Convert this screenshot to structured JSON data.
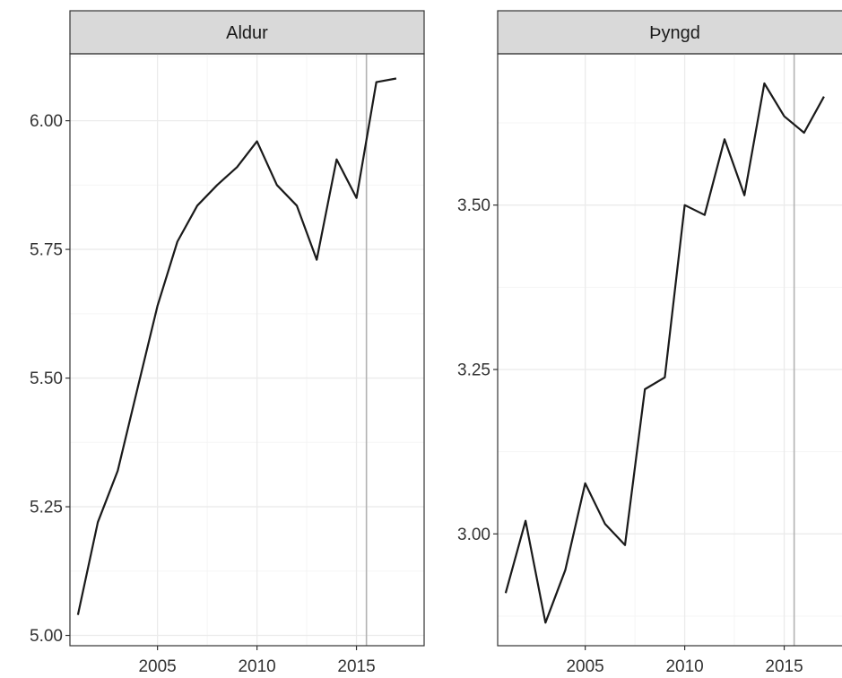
{
  "chart_data": [
    {
      "type": "line",
      "panel": "Aldur",
      "x": [
        2001,
        2002,
        2003,
        2004,
        2005,
        2006,
        2007,
        2008,
        2009,
        2010,
        2011,
        2012,
        2013,
        2014,
        2015,
        2016,
        2017
      ],
      "series": [
        {
          "values": [
            5.04,
            5.22,
            5.32,
            5.48,
            5.64,
            5.765,
            5.835,
            5.875,
            5.91,
            5.96,
            5.875,
            5.835,
            5.73,
            5.925,
            5.85,
            6.075,
            6.082
          ]
        }
      ],
      "xlim": [
        2000.6,
        2018.4
      ],
      "ylim": [
        4.98,
        6.13
      ],
      "xticks": [
        2005,
        2010,
        2015
      ],
      "xtick_labels": [
        "2005",
        "2010",
        "2015"
      ],
      "yticks": [
        5.0,
        5.25,
        5.5,
        5.75,
        6.0
      ],
      "ytick_labels": [
        "5.00",
        "5.25",
        "5.50",
        "5.75",
        "6.00"
      ],
      "vline_x": 2015.5,
      "grid": true
    },
    {
      "type": "line",
      "panel": "Þyngd",
      "x": [
        2001,
        2002,
        2003,
        2004,
        2005,
        2006,
        2007,
        2008,
        2009,
        2010,
        2011,
        2012,
        2013,
        2014,
        2015,
        2016,
        2017
      ],
      "series": [
        {
          "values": [
            2.91,
            3.02,
            2.865,
            2.945,
            3.077,
            3.015,
            2.983,
            3.22,
            3.238,
            3.5,
            3.485,
            3.6,
            3.515,
            3.685,
            3.635,
            3.61,
            3.665
          ]
        }
      ],
      "xlim": [
        2000.6,
        2018.4
      ],
      "ylim": [
        2.83,
        3.73
      ],
      "xticks": [
        2005,
        2010,
        2015
      ],
      "xtick_labels": [
        "2005",
        "2010",
        "2015"
      ],
      "yticks": [
        3.0,
        3.25,
        3.5
      ],
      "ytick_labels": [
        "3.00",
        "3.25",
        "3.50"
      ],
      "vline_x": 2015.5,
      "grid": true
    }
  ],
  "colors": {
    "line": "#1a1a1a",
    "vline": "#b3b3b3",
    "strip_fill": "#d9d9d9",
    "strip_border": "#333333",
    "panel_border": "#333333",
    "grid_major": "#ebebeb",
    "grid_minor": "#f5f5f5",
    "tick_text": "#333333"
  }
}
